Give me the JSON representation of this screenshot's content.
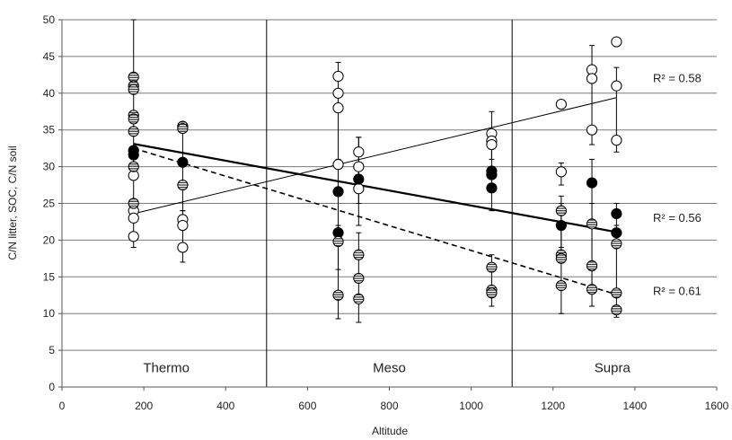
{
  "chart_data": {
    "type": "scatter",
    "xlabel": "Altitude",
    "ylabel": "C/N litter, SOC, C/N soil",
    "xlim": [
      0,
      1600
    ],
    "ylim": [
      0,
      50
    ],
    "xticks": [
      0,
      200,
      400,
      600,
      800,
      1000,
      1200,
      1400,
      1600
    ],
    "yticks": [
      0,
      5,
      10,
      15,
      20,
      25,
      30,
      35,
      40,
      45,
      50
    ],
    "grid": "horizontal",
    "zone_dividers": [
      500,
      1100
    ],
    "zones": [
      {
        "label": "Thermo",
        "x": 255
      },
      {
        "label": "Meso",
        "x": 800
      },
      {
        "label": "Supra",
        "x": 1345
      }
    ],
    "series": [
      {
        "marker": "open-circle",
        "points": [
          [
            175,
            28.8
          ],
          [
            175,
            24
          ],
          [
            175,
            23
          ],
          [
            175,
            20.5
          ],
          [
            295,
            22.8
          ],
          [
            295,
            22
          ],
          [
            295,
            19
          ],
          [
            675,
            42.3
          ],
          [
            675,
            40
          ],
          [
            675,
            38
          ],
          [
            675,
            30.3
          ],
          [
            725,
            32
          ],
          [
            725,
            30
          ],
          [
            725,
            27
          ],
          [
            1050,
            34.5
          ],
          [
            1050,
            33.5
          ],
          [
            1050,
            33
          ],
          [
            1220,
            38.5
          ],
          [
            1220,
            29.3
          ],
          [
            1295,
            43.2
          ],
          [
            1295,
            42
          ],
          [
            1295,
            35
          ],
          [
            1355,
            47
          ],
          [
            1355,
            41
          ],
          [
            1355,
            33.6
          ]
        ],
        "errorbars": [
          [
            175,
            19,
            50
          ],
          [
            295,
            17,
            24
          ],
          [
            675,
            30,
            44.2
          ],
          [
            725,
            25,
            34
          ],
          [
            1050,
            31,
            37.5
          ],
          [
            1220,
            27.5,
            30.5
          ],
          [
            1295,
            33,
            46.5
          ],
          [
            1355,
            32,
            43.5
          ]
        ],
        "trend": {
          "x": [
            175,
            1355
          ],
          "y": [
            23.6,
            39.4
          ],
          "style": "thin",
          "r2_label": "R² = 0.58",
          "r2_y": 42
        }
      },
      {
        "marker": "filled-circle",
        "points": [
          [
            175,
            32.2
          ],
          [
            175,
            31.6
          ],
          [
            295,
            30.6
          ],
          [
            675,
            26.6
          ],
          [
            675,
            21
          ],
          [
            725,
            28.3
          ],
          [
            1050,
            29.4
          ],
          [
            1050,
            28.9
          ],
          [
            1050,
            27.1
          ],
          [
            1220,
            22
          ],
          [
            1295,
            27.8
          ],
          [
            1295,
            16.5
          ],
          [
            1355,
            23.6
          ],
          [
            1355,
            21
          ]
        ],
        "errorbars": [
          [
            295,
            24,
            36
          ],
          [
            675,
            16,
            31
          ],
          [
            725,
            22,
            34
          ],
          [
            1050,
            24,
            34
          ],
          [
            1220,
            19,
            25
          ],
          [
            1295,
            13,
            31
          ],
          [
            1355,
            19,
            25
          ]
        ],
        "trend": {
          "x": [
            175,
            1355
          ],
          "y": [
            33.1,
            21.1
          ],
          "style": "thick",
          "r2_label": "R² = 0.56",
          "r2_y": 23
        }
      },
      {
        "marker": "striped-circle",
        "points": [
          [
            175,
            42.2
          ],
          [
            175,
            41
          ],
          [
            175,
            40.5
          ],
          [
            175,
            37
          ],
          [
            175,
            36.5
          ],
          [
            175,
            34.8
          ],
          [
            175,
            30
          ],
          [
            175,
            25
          ],
          [
            295,
            35.5
          ],
          [
            295,
            35.2
          ],
          [
            295,
            27.5
          ],
          [
            675,
            19.8
          ],
          [
            675,
            12.5
          ],
          [
            725,
            18
          ],
          [
            725,
            14.8
          ],
          [
            725,
            12
          ],
          [
            1050,
            16.3
          ],
          [
            1050,
            13.2
          ],
          [
            1050,
            12.8
          ],
          [
            1220,
            24
          ],
          [
            1220,
            18
          ],
          [
            1220,
            17.5
          ],
          [
            1220,
            13.8
          ],
          [
            1295,
            22.2
          ],
          [
            1295,
            16.5
          ],
          [
            1295,
            13.3
          ],
          [
            1355,
            19.5
          ],
          [
            1355,
            12.8
          ],
          [
            1355,
            10.5
          ]
        ],
        "errorbars": [
          [
            675,
            9.3,
            22
          ],
          [
            725,
            8.8,
            21
          ],
          [
            1050,
            11,
            18
          ],
          [
            1220,
            10,
            26
          ],
          [
            1295,
            11,
            25
          ],
          [
            1355,
            9.5,
            22
          ]
        ],
        "trend": {
          "x": [
            175,
            1355
          ],
          "y": [
            32.5,
            12.6
          ],
          "style": "dashed",
          "r2_label": "R² = 0.61",
          "r2_y": 13
        }
      }
    ]
  }
}
